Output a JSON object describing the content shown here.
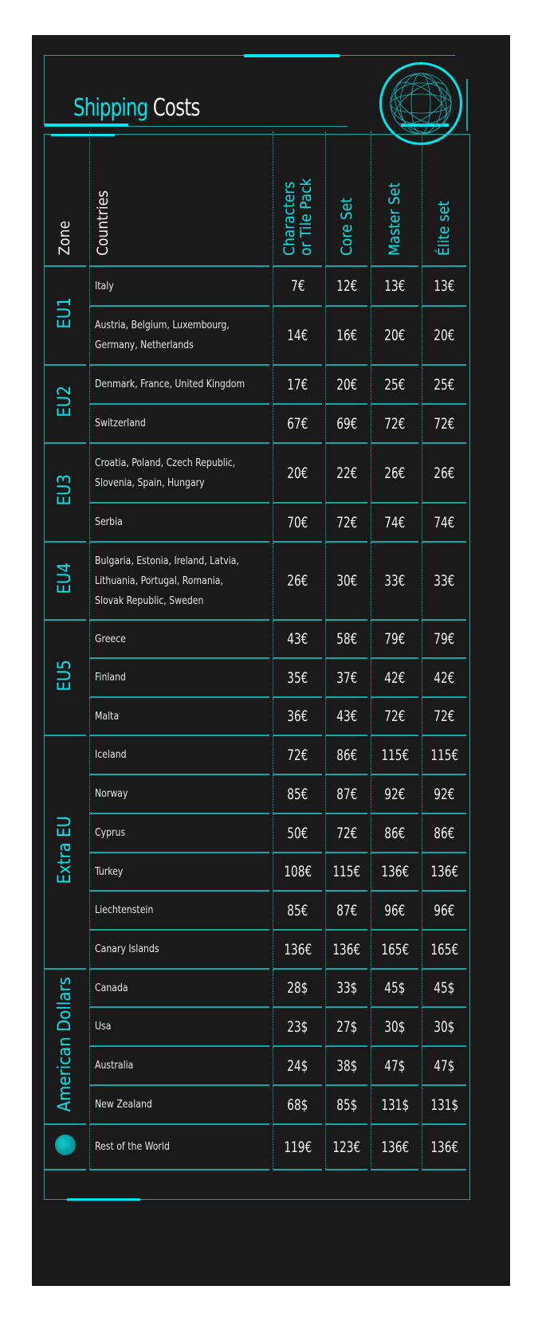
{
  "title": {
    "part1": "Shipping",
    "part2": "Costs"
  },
  "icons": {
    "globe": "wireframe-globe-icon"
  },
  "colors": {
    "accent": "#00e5ea",
    "background": "#1a1a1a",
    "text": "#f0f0f0"
  },
  "headers": {
    "zone": "Zone",
    "countries": "Countries",
    "col1": "Characters or Tile Pack",
    "col2": "Core Set",
    "col3": "Master Set",
    "col4": "Élite set"
  },
  "zones": [
    {
      "label": "EU1",
      "rows": [
        {
          "countries": "Italy",
          "prices": [
            "7€",
            "12€",
            "13€",
            "13€"
          ]
        },
        {
          "countries": "Austria, Belgium, Luxembourg, Germany, Netherlands",
          "prices": [
            "14€",
            "16€",
            "20€",
            "20€"
          ]
        }
      ]
    },
    {
      "label": "EU2",
      "rows": [
        {
          "countries": "Denmark, France, United Kingdom",
          "prices": [
            "17€",
            "20€",
            "25€",
            "25€"
          ]
        },
        {
          "countries": "Switzerland",
          "prices": [
            "67€",
            "69€",
            "72€",
            "72€"
          ]
        }
      ]
    },
    {
      "label": "EU3",
      "rows": [
        {
          "countries": "Croatia, Poland, Czech Republic, Slovenia, Spain, Hungary",
          "prices": [
            "20€",
            "22€",
            "26€",
            "26€"
          ]
        },
        {
          "countries": "Serbia",
          "prices": [
            "70€",
            "72€",
            "74€",
            "74€"
          ]
        }
      ]
    },
    {
      "label": "EU4",
      "rows": [
        {
          "countries": "Bulgaria, Estonia, Ireland, Latvia, Lithuania, Portugal, Romania, Slovak Republic, Sweden",
          "prices": [
            "26€",
            "30€",
            "33€",
            "33€"
          ]
        }
      ]
    },
    {
      "label": "EU5",
      "rows": [
        {
          "countries": "Greece",
          "prices": [
            "43€",
            "58€",
            "79€",
            "79€"
          ]
        },
        {
          "countries": "Finland",
          "prices": [
            "35€",
            "37€",
            "42€",
            "42€"
          ]
        },
        {
          "countries": "Malta",
          "prices": [
            "36€",
            "43€",
            "72€",
            "72€"
          ]
        }
      ]
    },
    {
      "label": "Extra EU",
      "rows": [
        {
          "countries": "Iceland",
          "prices": [
            "72€",
            "86€",
            "115€",
            "115€"
          ]
        },
        {
          "countries": "Norway",
          "prices": [
            "85€",
            "87€",
            "92€",
            "92€"
          ]
        },
        {
          "countries": "Cyprus",
          "prices": [
            "50€",
            "72€",
            "86€",
            "86€"
          ]
        },
        {
          "countries": "Turkey",
          "prices": [
            "108€",
            "115€",
            "136€",
            "136€"
          ]
        },
        {
          "countries": "Liechtenstein",
          "prices": [
            "85€",
            "87€",
            "96€",
            "96€"
          ]
        },
        {
          "countries": "Canary Islands",
          "prices": [
            "136€",
            "136€",
            "165€",
            "165€"
          ]
        }
      ]
    },
    {
      "label": "American Dollars",
      "rows": [
        {
          "countries": "Canada",
          "prices": [
            "28$",
            "33$",
            "45$",
            "45$"
          ]
        },
        {
          "countries": "Usa",
          "prices": [
            "23$",
            "27$",
            "30$",
            "30$"
          ]
        },
        {
          "countries": "Australia",
          "prices": [
            "24$",
            "38$",
            "47$",
            "47$"
          ]
        },
        {
          "countries": "New Zealand",
          "prices": [
            "68$",
            "85$",
            "131$",
            "131$"
          ]
        }
      ]
    },
    {
      "label": "",
      "icon": "globe-icon",
      "rows": [
        {
          "countries": "Rest of the World",
          "prices": [
            "119€",
            "123€",
            "136€",
            "136€"
          ]
        }
      ]
    }
  ]
}
